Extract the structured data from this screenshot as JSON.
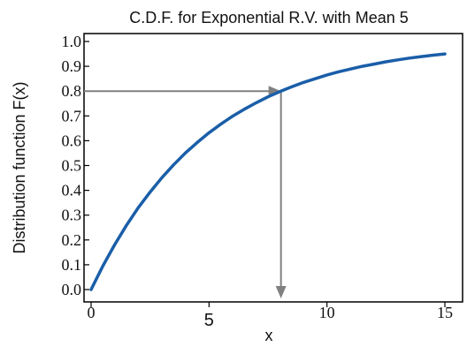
{
  "chart_data": {
    "type": "line",
    "title": "C.D.F. for Exponential R.V. with Mean 5",
    "xlabel": "x",
    "ylabel": "Distribution function F(x)",
    "xlim": [
      0,
      15
    ],
    "ylim": [
      0,
      1.0
    ],
    "xticks": [
      "0",
      "5",
      "10",
      "15"
    ],
    "xtick_values": [
      0,
      5,
      10,
      15
    ],
    "yticks": [
      "0.0",
      "0.1",
      "0.2",
      "0.3",
      "0.4",
      "0.5",
      "0.6",
      "0.7",
      "0.8",
      "0.9",
      "1.0"
    ],
    "ytick_values": [
      0.0,
      0.1,
      0.2,
      0.3,
      0.4,
      0.5,
      0.6,
      0.7,
      0.8,
      0.9,
      1.0
    ],
    "grid": false,
    "series": [
      {
        "x": [
          0,
          0.5,
          1,
          1.5,
          2,
          2.5,
          3,
          3.5,
          4,
          4.5,
          5,
          5.5,
          6,
          6.5,
          7,
          7.5,
          8,
          8.5,
          9,
          9.5,
          10,
          10.5,
          11,
          11.5,
          12,
          12.5,
          13,
          13.5,
          14,
          14.5,
          15
        ],
        "y": [
          0.0,
          0.095,
          0.181,
          0.259,
          0.33,
          0.393,
          0.451,
          0.503,
          0.551,
          0.593,
          0.632,
          0.667,
          0.699,
          0.727,
          0.753,
          0.777,
          0.798,
          0.817,
          0.835,
          0.85,
          0.865,
          0.878,
          0.889,
          0.9,
          0.909,
          0.918,
          0.926,
          0.933,
          0.939,
          0.945,
          0.95
        ],
        "color": "#1a5ea8"
      }
    ],
    "annotation": {
      "quantile_x": 8.05,
      "quantile_y": 0.8,
      "color": "#808080"
    }
  }
}
